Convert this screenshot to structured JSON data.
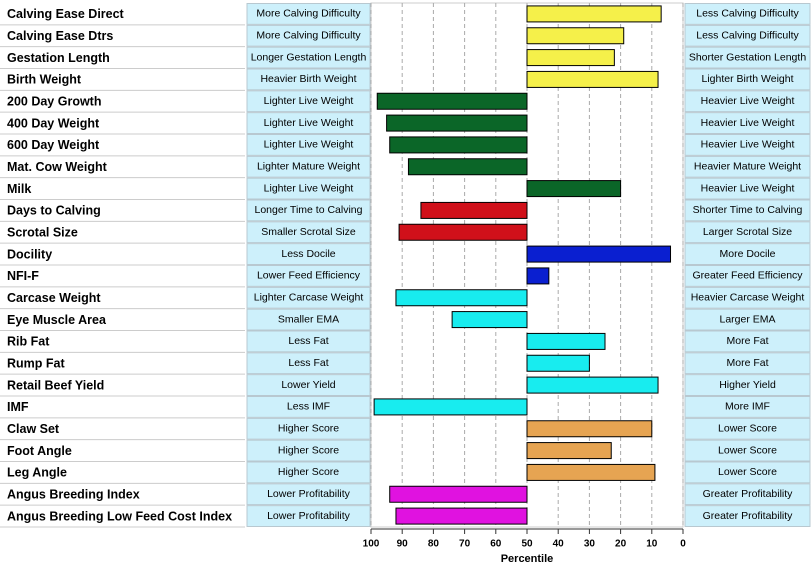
{
  "chart_data": {
    "type": "bar",
    "categories": [
      "Calving Ease Direct",
      "Calving Ease Dtrs",
      "Gestation Length",
      "Birth Weight",
      "200 Day Growth",
      "400 Day Weight",
      "600 Day Weight",
      "Mat. Cow Weight",
      "Milk",
      "Days to Calving",
      "Scrotal Size",
      "Docility",
      "NFI-F",
      "Carcase Weight",
      "Eye Muscle Area",
      "Rib Fat",
      "Rump Fat",
      "Retail Beef Yield",
      "IMF",
      "Claw Set",
      "Foot Angle",
      "Leg Angle",
      "Angus Breeding Index",
      "Angus Breeding Low Feed Cost Index"
    ],
    "values": [
      7,
      19,
      22,
      8,
      98,
      95,
      94,
      88,
      20,
      84,
      91,
      4,
      43,
      92,
      74,
      25,
      30,
      8,
      99,
      10,
      23,
      9,
      94,
      92
    ],
    "colors": [
      "#f5f04a",
      "#f5f04a",
      "#f5f04a",
      "#f5f04a",
      "#0b6628",
      "#0b6628",
      "#0b6628",
      "#0b6628",
      "#0b6628",
      "#d0101a",
      "#d0101a",
      "#0a1fd0",
      "#0a1fd0",
      "#18ecef",
      "#18ecef",
      "#18ecef",
      "#18ecef",
      "#18ecef",
      "#18ecef",
      "#e6a452",
      "#e6a452",
      "#e6a452",
      "#e012e0",
      "#e012e0"
    ],
    "left_labels": [
      "More Calving Difficulty",
      "More Calving Difficulty",
      "Longer Gestation Length",
      "Heavier Birth Weight",
      "Lighter Live Weight",
      "Lighter Live Weight",
      "Lighter Live Weight",
      "Lighter Mature Weight",
      "Lighter Live Weight",
      "Longer Time to Calving",
      "Smaller Scrotal Size",
      "Less Docile",
      "Lower Feed Efficiency",
      "Lighter Carcase Weight",
      "Smaller EMA",
      "Less Fat",
      "Less Fat",
      "Lower Yield",
      "Less IMF",
      "Higher Score",
      "Higher Score",
      "Higher Score",
      "Lower Profitability",
      "Lower Profitability"
    ],
    "right_labels": [
      "Less Calving Difficulty",
      "Less Calving Difficulty",
      "Shorter Gestation Length",
      "Lighter Birth Weight",
      "Heavier Live Weight",
      "Heavier Live Weight",
      "Heavier Live Weight",
      "Heavier Mature Weight",
      "Heavier Live Weight",
      "Shorter Time to Calving",
      "Larger Scrotal Size",
      "More Docile",
      "Greater Feed Efficiency",
      "Heavier Carcase Weight",
      "Larger EMA",
      "More Fat",
      "More Fat",
      "Higher Yield",
      "More IMF",
      "Lower Score",
      "Lower Score",
      "Lower Score",
      "Greater Profitability",
      "Greater Profitability"
    ],
    "xlabel": "Percentile",
    "xlim": [
      100,
      0
    ],
    "xticks": [
      100,
      90,
      80,
      70,
      60,
      50,
      40,
      30,
      20,
      10,
      0
    ],
    "grid": true
  }
}
